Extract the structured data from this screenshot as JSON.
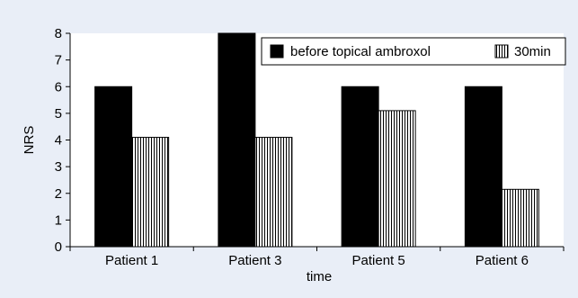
{
  "chart_data": {
    "type": "bar",
    "categories": [
      "Patient 1",
      "Patient 3",
      "Patient 5",
      "Patient 6"
    ],
    "series": [
      {
        "name": "before topical ambroxol",
        "values": [
          6,
          8,
          6,
          6
        ],
        "color": "#000000",
        "pattern": "solid"
      },
      {
        "name": "30min",
        "values": [
          4.1,
          4.1,
          5.1,
          2.15
        ],
        "color": "#000000",
        "pattern": "vertical-stripes"
      }
    ],
    "title": "",
    "xlabel": "time",
    "ylabel": "NRS",
    "ylim": [
      0,
      8
    ],
    "yticks": [
      0,
      1,
      2,
      3,
      4,
      5,
      6,
      7,
      8
    ],
    "grid": false,
    "legend_position": "top-right",
    "background_color": "#e9eef7"
  }
}
